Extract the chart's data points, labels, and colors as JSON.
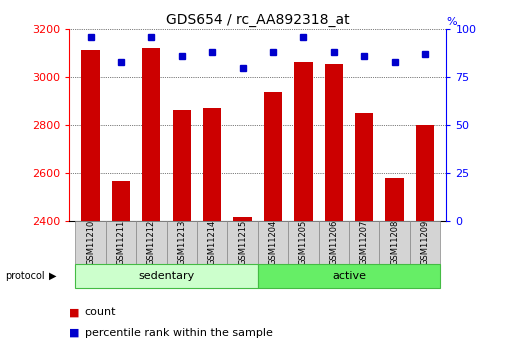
{
  "title": "GDS654 / rc_AA892318_at",
  "samples": [
    "GSM11210",
    "GSM11211",
    "GSM11212",
    "GSM11213",
    "GSM11214",
    "GSM11215",
    "GSM11204",
    "GSM11205",
    "GSM11206",
    "GSM11207",
    "GSM11208",
    "GSM11209"
  ],
  "counts": [
    3115,
    2565,
    3120,
    2865,
    2870,
    2415,
    2940,
    3065,
    3055,
    2850,
    2580,
    2800
  ],
  "percentiles": [
    96,
    83,
    96,
    86,
    88,
    80,
    88,
    96,
    88,
    86,
    83,
    87
  ],
  "groups": [
    {
      "label": "sedentary",
      "start": 0,
      "end": 6,
      "color": "#ccffcc",
      "edge": "#44bb44"
    },
    {
      "label": "active",
      "start": 6,
      "end": 12,
      "color": "#66ee66",
      "edge": "#44bb44"
    }
  ],
  "ylim_left": [
    2400,
    3200
  ],
  "ylim_right": [
    0,
    100
  ],
  "yticks_left": [
    2400,
    2600,
    2800,
    3000,
    3200
  ],
  "yticks_right": [
    0,
    25,
    50,
    75,
    100
  ],
  "bar_color": "#cc0000",
  "dot_color": "#0000cc",
  "grid_color": "black",
  "protocol_label": "protocol",
  "legend_count": "count",
  "legend_percentile": "percentile rank within the sample",
  "bar_width": 0.6
}
